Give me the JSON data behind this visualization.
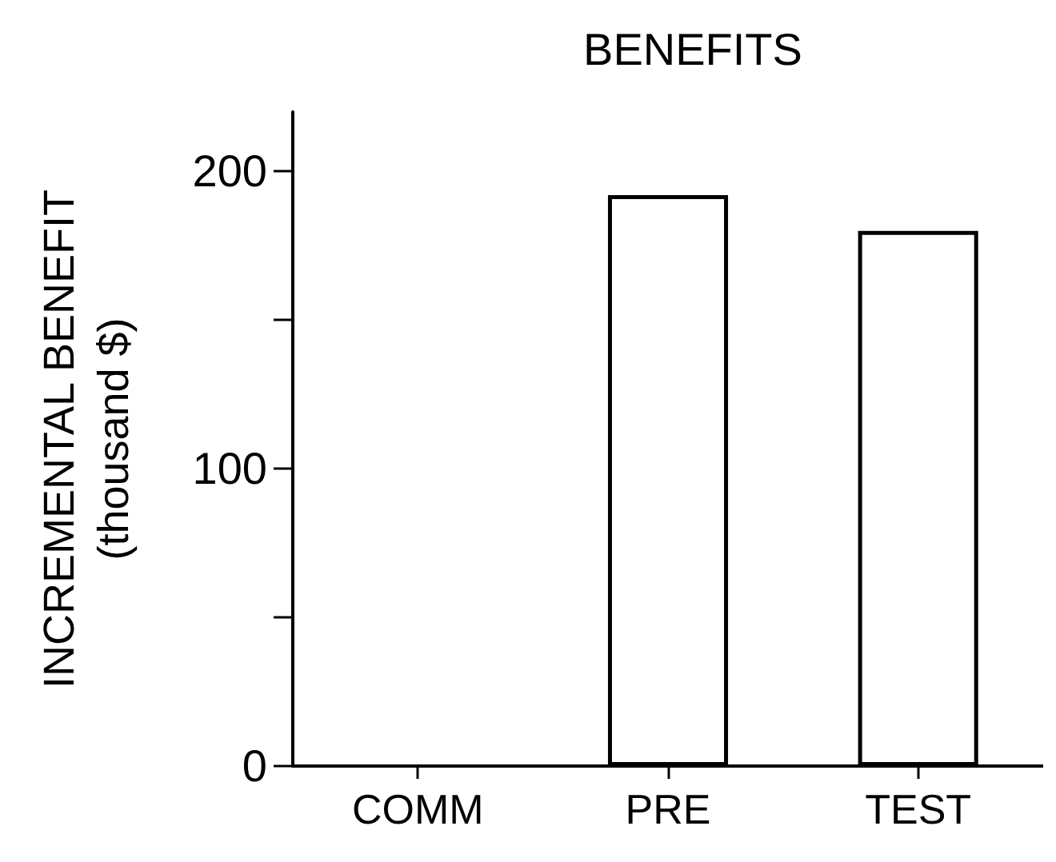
{
  "chart_data": {
    "type": "bar",
    "title": "BENEFITS",
    "ylabel": "INCREMENTAL BENEFIT\n(thousand $)",
    "categories": [
      "COMM",
      "PRE",
      "TEST"
    ],
    "values": [
      0,
      192,
      180
    ],
    "color": "#ffffff",
    "ylim": [
      0,
      220
    ],
    "yticks": [
      0,
      {
        "value": 50,
        "label": null
      },
      100,
      {
        "value": 150,
        "label": null
      },
      200
    ],
    "grid": false
  }
}
